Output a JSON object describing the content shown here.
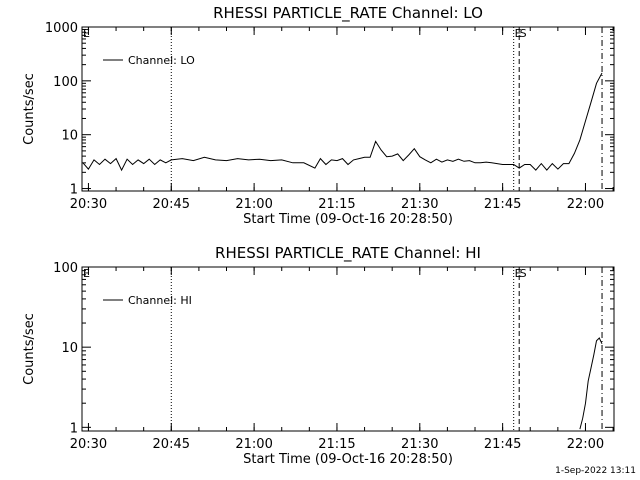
{
  "chart_data": [
    {
      "type": "line",
      "title": "RHESSI PARTICLE_RATE Channel: LO",
      "xlabel": "Start Time (09-Oct-16 20:28:50)",
      "ylabel": "Counts/sec",
      "y_scale": "log",
      "ylim": [
        0.9,
        1000
      ],
      "xlim": [
        "20:28:50",
        "22:05:10"
      ],
      "x_ticks": [
        "20:30",
        "20:45",
        "21:00",
        "21:15",
        "21:30",
        "21:45",
        "22:00"
      ],
      "y_ticks": [
        "1",
        "10",
        "100",
        "1000"
      ],
      "legend": {
        "position": "top-left",
        "entries": [
          "Channel: LO"
        ]
      },
      "corner_marks": [
        "E",
        "S"
      ],
      "vertical_markers": [
        {
          "time": "20:45",
          "style": "dotted"
        },
        {
          "time": "21:47",
          "style": "dotted"
        },
        {
          "time": "21:48",
          "style": "dashed"
        },
        {
          "time": "22:03",
          "style": "dashdot"
        }
      ],
      "series": [
        {
          "name": "Channel: LO",
          "x": [
            "20:29",
            "20:30",
            "20:31",
            "20:32",
            "20:33",
            "20:34",
            "20:35",
            "20:36",
            "20:37",
            "20:38",
            "20:39",
            "20:40",
            "20:41",
            "20:42",
            "20:43",
            "20:44",
            "20:45",
            "20:47",
            "20:49",
            "20:51",
            "20:53",
            "20:55",
            "20:57",
            "20:59",
            "21:01",
            "21:03",
            "21:05",
            "21:07",
            "21:09",
            "21:11",
            "21:12",
            "21:13",
            "21:14",
            "21:15",
            "21:16",
            "21:17",
            "21:18",
            "21:19",
            "21:20",
            "21:21",
            "21:22",
            "21:23",
            "21:24",
            "21:25",
            "21:26",
            "21:27",
            "21:28",
            "21:29",
            "21:30",
            "21:31",
            "21:32",
            "21:33",
            "21:34",
            "21:35",
            "21:36",
            "21:37",
            "21:38",
            "21:39",
            "21:40",
            "21:41",
            "21:42",
            "21:43",
            "21:44",
            "21:45",
            "21:46",
            "21:47",
            "21:48",
            "21:49",
            "21:50",
            "21:51",
            "21:52",
            "21:53",
            "21:54",
            "21:55",
            "21:56",
            "21:57",
            "21:58",
            "21:59",
            "22:00",
            "22:01",
            "22:02",
            "22:03"
          ],
          "y": [
            3.0,
            2.3,
            3.4,
            2.8,
            3.5,
            2.9,
            3.6,
            2.2,
            3.5,
            2.8,
            3.4,
            2.9,
            3.5,
            2.8,
            3.4,
            3.0,
            3.4,
            3.6,
            3.3,
            3.8,
            3.4,
            3.3,
            3.6,
            3.4,
            3.5,
            3.3,
            3.4,
            3.0,
            3.0,
            2.4,
            3.6,
            2.8,
            3.4,
            3.3,
            3.6,
            2.8,
            3.4,
            3.6,
            3.8,
            3.8,
            7.5,
            5.2,
            3.9,
            4.0,
            4.4,
            3.3,
            4.2,
            5.5,
            3.9,
            3.4,
            3.0,
            3.5,
            3.1,
            3.4,
            3.2,
            3.5,
            3.2,
            3.3,
            3.0,
            3.0,
            3.1,
            3.0,
            2.9,
            2.8,
            2.8,
            2.8,
            2.4,
            2.8,
            2.8,
            2.2,
            2.9,
            2.2,
            2.9,
            2.3,
            2.9,
            2.9,
            4.5,
            8.0,
            18.0,
            40.0,
            90.0,
            140.0
          ]
        }
      ]
    },
    {
      "type": "line",
      "title": "RHESSI PARTICLE_RATE Channel: HI",
      "xlabel": "Start Time (09-Oct-16 20:28:50)",
      "ylabel": "Counts/sec",
      "y_scale": "log",
      "ylim": [
        0.9,
        100
      ],
      "xlim": [
        "20:28:50",
        "22:05:10"
      ],
      "x_ticks": [
        "20:30",
        "20:45",
        "21:00",
        "21:15",
        "21:30",
        "21:45",
        "22:00"
      ],
      "y_ticks": [
        "1",
        "10",
        "100"
      ],
      "legend": {
        "position": "top-left",
        "entries": [
          "Channel: HI"
        ]
      },
      "corner_marks": [
        "E",
        "S"
      ],
      "vertical_markers": [
        {
          "time": "20:45",
          "style": "dotted"
        },
        {
          "time": "21:47",
          "style": "dotted"
        },
        {
          "time": "21:48",
          "style": "dashed"
        },
        {
          "time": "22:03",
          "style": "dashdot"
        }
      ],
      "series": [
        {
          "name": "Channel: HI",
          "x": [
            "21:59",
            "21:59:30",
            "22:00",
            "22:00:30",
            "22:01",
            "22:01:30",
            "22:02",
            "22:02:30",
            "22:03"
          ],
          "y": [
            0.95,
            1.3,
            2.0,
            3.8,
            5.5,
            8.0,
            12.0,
            13.0,
            11.0
          ]
        }
      ]
    }
  ],
  "footer": {
    "date_stamp": "1-Sep-2022 13:11"
  }
}
